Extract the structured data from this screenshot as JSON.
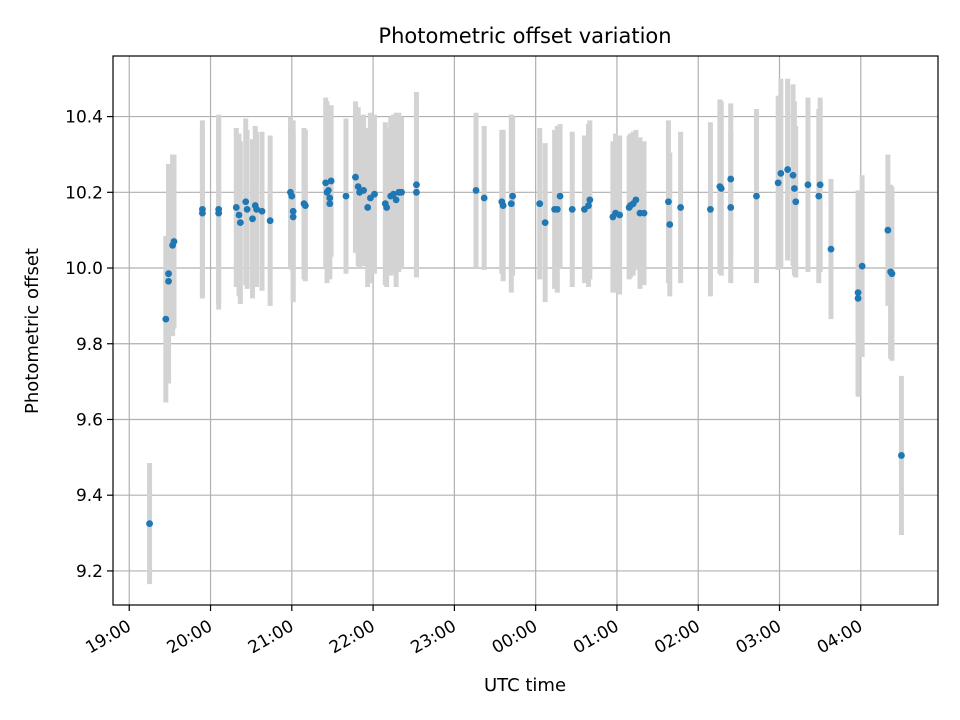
{
  "chart_data": {
    "type": "scatter",
    "title": "Photometric offset variation",
    "xlabel": "UTC time",
    "ylabel": "Photometric offset",
    "grid": true,
    "x_tick_labels": [
      "19:00",
      "20:00",
      "21:00",
      "22:00",
      "23:00",
      "00:00",
      "01:00",
      "02:00",
      "03:00",
      "04:00"
    ],
    "y_tick_labels": [
      "9.2",
      "9.4",
      "9.6",
      "9.8",
      "10.0",
      "10.2",
      "10.4"
    ],
    "x_tick_values": [
      0,
      60,
      120,
      180,
      240,
      300,
      360,
      420,
      480,
      540
    ],
    "y_tick_values": [
      9.2,
      9.4,
      9.6,
      9.8,
      10.0,
      10.2,
      10.4
    ],
    "xlim": [
      -12,
      597
    ],
    "ylim": [
      9.11,
      10.56
    ],
    "x_unit": "minutes after 19:00 UTC",
    "colors": {
      "point": "#1f77b4",
      "errorbar": "#d3d3d3",
      "grid": "#b0b0b0"
    },
    "points": [
      [
        15,
        9.325,
        0.16
      ],
      [
        27,
        9.865,
        0.22
      ],
      [
        29,
        9.985,
        0.29
      ],
      [
        29,
        9.965,
        0.27
      ],
      [
        32,
        10.06,
        0.24
      ],
      [
        33,
        10.07,
        0.23
      ],
      [
        54,
        10.155,
        0.235
      ],
      [
        54,
        10.145,
        0.225
      ],
      [
        66,
        10.145,
        0.255
      ],
      [
        66,
        10.155,
        0.25
      ],
      [
        79,
        10.16,
        0.21
      ],
      [
        81,
        10.14,
        0.215
      ],
      [
        82,
        10.12,
        0.215
      ],
      [
        86,
        10.175,
        0.22
      ],
      [
        87,
        10.155,
        0.21
      ],
      [
        91,
        10.13,
        0.21
      ],
      [
        93,
        10.165,
        0.21
      ],
      [
        94,
        10.155,
        0.205
      ],
      [
        98,
        10.15,
        0.21
      ],
      [
        104,
        10.125,
        0.225
      ],
      [
        119,
        10.2,
        0.2
      ],
      [
        120,
        10.19,
        0.195
      ],
      [
        121,
        10.15,
        0.24
      ],
      [
        121,
        10.135,
        0.225
      ],
      [
        129,
        10.17,
        0.2
      ],
      [
        130,
        10.165,
        0.2
      ],
      [
        145,
        10.225,
        0.225
      ],
      [
        146,
        10.2,
        0.24
      ],
      [
        147,
        10.205,
        0.2
      ],
      [
        148,
        10.185,
        0.21
      ],
      [
        148,
        10.17,
        0.2
      ],
      [
        149,
        10.23,
        0.2
      ],
      [
        160,
        10.19,
        0.205
      ],
      [
        167,
        10.24,
        0.2
      ],
      [
        169,
        10.215,
        0.21
      ],
      [
        170,
        10.2,
        0.2
      ],
      [
        173,
        10.205,
        0.2
      ],
      [
        176,
        10.16,
        0.21
      ],
      [
        178,
        10.185,
        0.225
      ],
      [
        181,
        10.195,
        0.21
      ],
      [
        189,
        10.17,
        0.215
      ],
      [
        190,
        10.16,
        0.21
      ],
      [
        193,
        10.19,
        0.21
      ],
      [
        195,
        10.195,
        0.21
      ],
      [
        197,
        10.18,
        0.23
      ],
      [
        199,
        10.2,
        0.21
      ],
      [
        201,
        10.2,
        0.2
      ],
      [
        212,
        10.22,
        0.245
      ],
      [
        212,
        10.2,
        0.225
      ],
      [
        256,
        10.205,
        0.205
      ],
      [
        262,
        10.185,
        0.19
      ],
      [
        275,
        10.175,
        0.19
      ],
      [
        276,
        10.165,
        0.2
      ],
      [
        282,
        10.17,
        0.235
      ],
      [
        283,
        10.19,
        0.21
      ],
      [
        303,
        10.17,
        0.2
      ],
      [
        307,
        10.12,
        0.21
      ],
      [
        314,
        10.155,
        0.21
      ],
      [
        316,
        10.155,
        0.22
      ],
      [
        318,
        10.19,
        0.19
      ],
      [
        327,
        10.155,
        0.205
      ],
      [
        336,
        10.155,
        0.195
      ],
      [
        339,
        10.165,
        0.215
      ],
      [
        340,
        10.18,
        0.21
      ],
      [
        357,
        10.135,
        0.2
      ],
      [
        359,
        10.145,
        0.21
      ],
      [
        362,
        10.14,
        0.21
      ],
      [
        369,
        10.16,
        0.19
      ],
      [
        370,
        10.165,
        0.19
      ],
      [
        372,
        10.17,
        0.19
      ],
      [
        374,
        10.18,
        0.185
      ],
      [
        377,
        10.145,
        0.2
      ],
      [
        380,
        10.145,
        0.19
      ],
      [
        398,
        10.175,
        0.215
      ],
      [
        399,
        10.115,
        0.19
      ],
      [
        407,
        10.16,
        0.2
      ],
      [
        429,
        10.155,
        0.23
      ],
      [
        436,
        10.215,
        0.23
      ],
      [
        437,
        10.21,
        0.23
      ],
      [
        444,
        10.235,
        0.2
      ],
      [
        444,
        10.16,
        0.2
      ],
      [
        463,
        10.19,
        0.23
      ],
      [
        479,
        10.225,
        0.23
      ],
      [
        481,
        10.25,
        0.25
      ],
      [
        486,
        10.26,
        0.24
      ],
      [
        490,
        10.245,
        0.24
      ],
      [
        491,
        10.21,
        0.23
      ],
      [
        492,
        10.175,
        0.2
      ],
      [
        501,
        10.22,
        0.23
      ],
      [
        509,
        10.19,
        0.23
      ],
      [
        510,
        10.22,
        0.23
      ],
      [
        518,
        10.05,
        0.185
      ],
      [
        538,
        9.935,
        0.27
      ],
      [
        538,
        9.92,
        0.26
      ],
      [
        541,
        10.005,
        0.24
      ],
      [
        560,
        10.1,
        0.2
      ],
      [
        562,
        9.99,
        0.23
      ],
      [
        563,
        9.985,
        0.23
      ],
      [
        570,
        9.505,
        0.21
      ]
    ]
  }
}
